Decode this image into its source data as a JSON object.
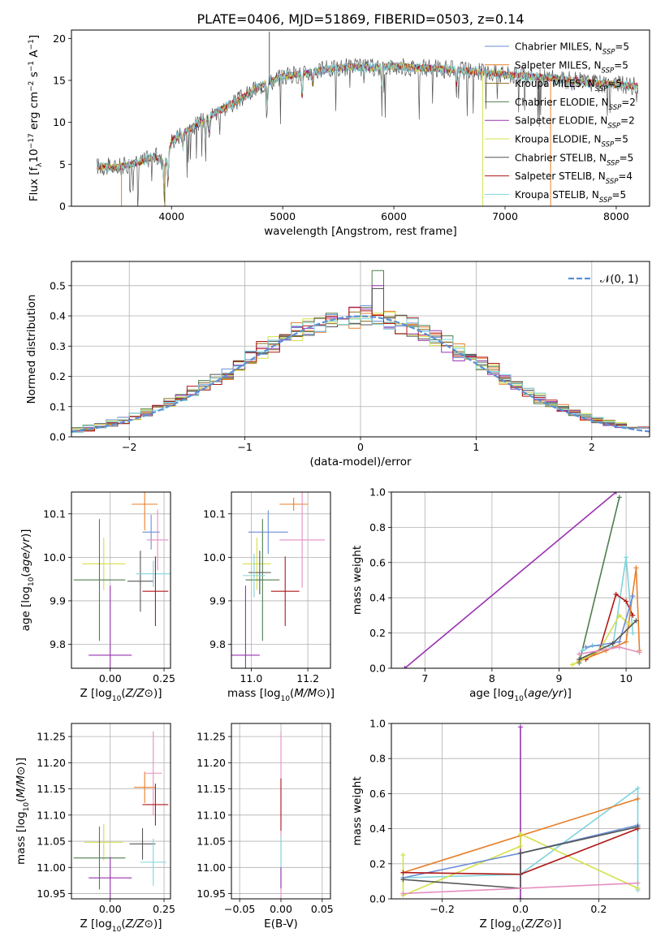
{
  "figure": {
    "title": "PLATE=0406, MJD=51869, FIBERID=0503, z=0.14"
  },
  "colors": {
    "Chabrier MILES": "#6a8fd6",
    "Salpeter MILES": "#e87f2a",
    "Kroupa MILES": "#8a6d1f",
    "Chabrier ELODIE": "#4f7d4f",
    "Salpeter ELODIE": "#9932b0",
    "Kroupa ELODIE": "#d4e04a",
    "Chabrier STELIB": "#555555",
    "Salpeter STELIB": "#b01818",
    "Kroupa STELIB": "#7fd4dc",
    "pink": "#e58fc0",
    "gauss": "#5b8fd6"
  },
  "chart_data": [
    {
      "id": "spectrum",
      "type": "line",
      "xlabel": "wavelength [Angstrom, rest frame]",
      "ylabel": "Flux [f_λ 10^-17 erg cm^-2 s^-1 A^-1]",
      "xlim": [
        3100,
        8300
      ],
      "ylim": [
        0,
        21
      ],
      "xticks": [
        4000,
        5000,
        6000,
        7000,
        8000
      ],
      "yticks": [
        0,
        5,
        10,
        15,
        20
      ],
      "legend_position": "top-right",
      "legend": [
        {
          "label": "Chabrier MILES, N_SSP=5",
          "base": "Chabrier MILES, N",
          "sub": "SSP",
          "suffix": "=5"
        },
        {
          "label": "Salpeter MILES, N_SSP=5",
          "base": "Salpeter MILES, N",
          "sub": "SSP",
          "suffix": "=5"
        },
        {
          "label": "Kroupa MILES, N_SSP=5",
          "base": "Kroupa MILES, N",
          "sub": "SSP",
          "suffix": "=5"
        },
        {
          "label": "Chabrier ELODIE, N_SSP=2",
          "base": "Chabrier ELODIE, N",
          "sub": "SSP",
          "suffix": "=2"
        },
        {
          "label": "Salpeter ELODIE, N_SSP=2",
          "base": "Salpeter ELODIE, N",
          "sub": "SSP",
          "suffix": "=2"
        },
        {
          "label": "Kroupa ELODIE, N_SSP=5",
          "base": "Kroupa ELODIE, N",
          "sub": "SSP",
          "suffix": "=5"
        },
        {
          "label": "Chabrier STELIB, N_SSP=5",
          "base": "Chabrier STELIB, N",
          "sub": "SSP",
          "suffix": "=5"
        },
        {
          "label": "Salpeter STELIB, N_SSP=4",
          "base": "Salpeter STELIB, N",
          "sub": "SSP",
          "suffix": "=4"
        },
        {
          "label": "Kroupa STELIB, N_SSP=5",
          "base": "Kroupa STELIB, N",
          "sub": "SSP",
          "suffix": "=5"
        }
      ],
      "continuum": [
        [
          3330,
          4.8
        ],
        [
          3500,
          4.6
        ],
        [
          3700,
          5.2
        ],
        [
          3850,
          6.0
        ],
        [
          3950,
          5.0
        ],
        [
          4000,
          7.8
        ],
        [
          4200,
          9.5
        ],
        [
          4400,
          11.2
        ],
        [
          4600,
          12.6
        ],
        [
          4800,
          14.3
        ],
        [
          5000,
          15.5
        ],
        [
          5200,
          15.8
        ],
        [
          5400,
          16.3
        ],
        [
          5600,
          16.6
        ],
        [
          5800,
          16.5
        ],
        [
          6000,
          16.7
        ],
        [
          6200,
          16.5
        ],
        [
          6400,
          16.4
        ],
        [
          6600,
          16.2
        ],
        [
          6800,
          16.0
        ],
        [
          7000,
          15.7
        ],
        [
          7200,
          15.5
        ],
        [
          7400,
          15.3
        ],
        [
          7600,
          15.0
        ],
        [
          7800,
          14.7
        ],
        [
          8000,
          14.5
        ],
        [
          8200,
          14.3
        ]
      ],
      "absorption_lines": [
        [
          3934,
          4.5
        ],
        [
          3969,
          3.8
        ],
        [
          4102,
          2.0
        ],
        [
          4305,
          2.5
        ],
        [
          4340,
          2.0
        ],
        [
          4861,
          2.8
        ],
        [
          5175,
          3.5
        ],
        [
          5270,
          1.5
        ],
        [
          5890,
          2.5
        ],
        [
          6563,
          1.8
        ],
        [
          7600,
          1.0
        ]
      ],
      "spikes": [
        {
          "x": 3550,
          "y0": 0,
          "y1": 4.5,
          "series": "Salpeter MILES"
        },
        {
          "x": 3940,
          "y0": 0,
          "y1": 5.0,
          "series": "Kroupa MILES"
        },
        {
          "x": 6800,
          "y0": 0,
          "y1": 16.0,
          "series": "Kroupa ELODIE"
        },
        {
          "x": 7410,
          "y0": 0,
          "y1": 15.3,
          "series": "Salpeter MILES"
        },
        {
          "x": 4880,
          "y0": 14.5,
          "y1": 20.8,
          "series": "Chabrier STELIB"
        }
      ]
    },
    {
      "id": "residuals",
      "type": "line",
      "xlabel": "(data-model)/error",
      "ylabel": "Normed distribution",
      "xlim": [
        -2.5,
        2.5
      ],
      "ylim": [
        0,
        0.58
      ],
      "xticks": [
        -2,
        -1,
        0,
        1,
        2
      ],
      "yticks": [
        0.0,
        0.1,
        0.2,
        0.3,
        0.4,
        0.5
      ],
      "legend_position": "top-right",
      "legend": [
        {
          "label": "𝒩(0, 1)",
          "style": "dashed"
        }
      ],
      "bin_width": 0.1,
      "peak_values": {
        "Chabrier ELODIE": 0.55,
        "Salpeter ELODIE": 0.5,
        "Chabrier STELIB": 0.49
      },
      "gaussian": {
        "mean": 0,
        "sigma": 1
      }
    },
    {
      "id": "age-vs-Z",
      "type": "scatter",
      "xlabel": "Z [log10(Z/Z⊙)]",
      "ylabel": "age [log10(age/yr)]",
      "xlim": [
        -0.18,
        0.28
      ],
      "ylim": [
        9.745,
        10.15
      ],
      "xticks": [
        0.0,
        0.25
      ],
      "yticks": [
        9.8,
        9.9,
        10.0,
        10.1
      ],
      "points": [
        {
          "series": "Kroupa ELODIE",
          "x": -0.03,
          "xerr": 0.1,
          "y": 9.985,
          "yerr": 0.06
        },
        {
          "series": "Chabrier ELODIE",
          "x": -0.05,
          "xerr": 0.12,
          "y": 9.948,
          "yerr": 0.14
        },
        {
          "series": "Salpeter ELODIE",
          "x": 0.0,
          "xerr": 0.1,
          "y": 9.775,
          "yerr": 0.16
        },
        {
          "series": "Salpeter MILES",
          "x": 0.16,
          "xerr": 0.06,
          "y": 10.122,
          "yerr": 0.06
        },
        {
          "series": "Chabrier STELIB",
          "x": 0.14,
          "xerr": 0.06,
          "y": 9.945,
          "yerr": 0.07
        },
        {
          "series": "Kroupa STELIB",
          "x": 0.2,
          "xerr": 0.08,
          "y": 9.962,
          "yerr": 0.03
        },
        {
          "series": "Chabrier MILES",
          "x": 0.19,
          "xerr": 0.04,
          "y": 10.058,
          "yerr": 0.04
        },
        {
          "series": "pink",
          "x": 0.22,
          "xerr": 0.05,
          "y": 10.04,
          "yerr": 0.07
        },
        {
          "series": "Salpeter STELIB",
          "x": 0.21,
          "xerr": 0.06,
          "y": 9.922,
          "yerr": 0.08
        }
      ]
    },
    {
      "id": "age-vs-mass",
      "type": "scatter",
      "xlabel": "mass [log10(M/M⊙)]",
      "ylabel": "",
      "xlim": [
        10.93,
        11.28
      ],
      "ylim": [
        9.745,
        10.15
      ],
      "xticks": [
        11.0,
        11.2
      ],
      "yticks": [
        9.8,
        9.9,
        10.0,
        10.1
      ],
      "points": [
        {
          "series": "Kroupa ELODIE",
          "x": 11.02,
          "xerr": 0.05,
          "y": 9.985,
          "yerr": 0.06
        },
        {
          "series": "Chabrier ELODIE",
          "x": 11.04,
          "xerr": 0.06,
          "y": 9.948,
          "yerr": 0.14
        },
        {
          "series": "Salpeter ELODIE",
          "x": 10.98,
          "xerr": 0.05,
          "y": 9.775,
          "yerr": 0.16
        },
        {
          "series": "Salpeter MILES",
          "x": 11.15,
          "xerr": 0.05,
          "y": 10.122,
          "yerr": 0.015
        },
        {
          "series": "Chabrier STELIB",
          "x": 11.03,
          "xerr": 0.04,
          "y": 9.965,
          "yerr": 0.05
        },
        {
          "series": "Kroupa STELIB",
          "x": 11.01,
          "xerr": 0.04,
          "y": 9.958,
          "yerr": 0.05
        },
        {
          "series": "Chabrier MILES",
          "x": 11.06,
          "xerr": 0.07,
          "y": 10.058,
          "yerr": 0.05
        },
        {
          "series": "pink",
          "x": 11.18,
          "xerr": 0.08,
          "y": 10.04,
          "yerr": 0.11
        },
        {
          "series": "Salpeter STELIB",
          "x": 11.12,
          "xerr": 0.05,
          "y": 9.922,
          "yerr": 0.08
        }
      ]
    },
    {
      "id": "massweight-vs-age",
      "type": "line",
      "xlabel": "age [log10(age/yr)]",
      "ylabel": "mass weight",
      "xlim": [
        6.5,
        10.35
      ],
      "ylim": [
        0,
        1.0
      ],
      "xticks": [
        7,
        8,
        9,
        10
      ],
      "yticks": [
        0.0,
        0.2,
        0.4,
        0.6,
        0.8,
        1.0
      ],
      "series": [
        {
          "name": "Salpeter ELODIE",
          "points": [
            [
              6.7,
              0.0
            ],
            [
              9.85,
              1.0
            ]
          ]
        },
        {
          "name": "Chabrier ELODIE",
          "points": [
            [
              9.3,
              0.03
            ],
            [
              9.9,
              0.97
            ]
          ]
        },
        {
          "name": "Kroupa STELIB",
          "points": [
            [
              9.35,
              0.1
            ],
            [
              9.5,
              0.13
            ],
            [
              9.8,
              0.12
            ],
            [
              10.0,
              0.63
            ],
            [
              10.1,
              0.2
            ]
          ]
        },
        {
          "name": "Salpeter STELIB",
          "points": [
            [
              9.4,
              0.05
            ],
            [
              9.6,
              0.1
            ],
            [
              9.85,
              0.42
            ],
            [
              10.0,
              0.38
            ],
            [
              10.1,
              0.3
            ]
          ]
        },
        {
          "name": "Salpeter MILES",
          "points": [
            [
              9.3,
              0.04
            ],
            [
              9.7,
              0.1
            ],
            [
              10.0,
              0.15
            ],
            [
              10.15,
              0.57
            ],
            [
              10.2,
              0.1
            ]
          ]
        },
        {
          "name": "Kroupa ELODIE",
          "points": [
            [
              9.2,
              0.02
            ],
            [
              9.6,
              0.1
            ],
            [
              9.9,
              0.3
            ],
            [
              10.05,
              0.25
            ]
          ]
        },
        {
          "name": "Chabrier MILES",
          "points": [
            [
              9.4,
              0.12
            ],
            [
              9.9,
              0.15
            ],
            [
              10.1,
              0.41
            ]
          ]
        },
        {
          "name": "Chabrier STELIB",
          "points": [
            [
              9.3,
              0.05
            ],
            [
              9.8,
              0.14
            ],
            [
              10.15,
              0.27
            ]
          ]
        },
        {
          "name": "pink",
          "points": [
            [
              9.3,
              0.08
            ],
            [
              9.9,
              0.12
            ],
            [
              10.2,
              0.09
            ]
          ]
        }
      ]
    },
    {
      "id": "mass-vs-Z",
      "type": "scatter",
      "xlabel": "Z [log10(Z/Z⊙)]",
      "ylabel": "mass [log10(M/M⊙)]",
      "xlim": [
        -0.18,
        0.28
      ],
      "ylim": [
        10.94,
        11.275
      ],
      "xticks": [
        0.0,
        0.25
      ],
      "yticks": [
        10.95,
        11.0,
        11.05,
        11.1,
        11.15,
        11.2,
        11.25
      ],
      "points": [
        {
          "series": "Kroupa ELODIE",
          "x": -0.03,
          "xerr": 0.09,
          "y": 11.048,
          "yerr": 0.035
        },
        {
          "series": "Chabrier ELODIE",
          "x": -0.05,
          "xerr": 0.12,
          "y": 11.018,
          "yerr": 0.06
        },
        {
          "series": "Salpeter ELODIE",
          "x": 0.0,
          "xerr": 0.1,
          "y": 10.98,
          "yerr": 0.04
        },
        {
          "series": "Salpeter MILES",
          "x": 0.16,
          "xerr": 0.05,
          "y": 11.153,
          "yerr": 0.03
        },
        {
          "series": "Chabrier STELIB",
          "x": 0.15,
          "xerr": 0.06,
          "y": 11.045,
          "yerr": 0.03
        },
        {
          "series": "Kroupa STELIB",
          "x": 0.2,
          "xerr": 0.06,
          "y": 11.01,
          "yerr": 0.045
        },
        {
          "series": "pink",
          "x": 0.2,
          "xerr": 0.04,
          "y": 11.18,
          "yerr": 0.08
        },
        {
          "series": "Salpeter STELIB",
          "x": 0.21,
          "xerr": 0.06,
          "y": 11.12,
          "yerr": 0.04
        }
      ]
    },
    {
      "id": "mass-vs-EBV",
      "type": "scatter",
      "xlabel": "E(B-V)",
      "ylabel": "",
      "xlim": [
        -0.06,
        0.06
      ],
      "ylim": [
        10.94,
        11.275
      ],
      "xticks": [
        -0.05,
        0.0,
        0.05
      ],
      "yticks": [
        10.95,
        11.0,
        11.05,
        11.1,
        11.15,
        11.2,
        11.25
      ],
      "points": [
        {
          "series": "pink",
          "x": 0.0,
          "xerr": 0,
          "y": 11.1,
          "yerr": 0.16
        },
        {
          "series": "Salpeter STELIB",
          "x": 0.0,
          "xerr": 0,
          "y": 11.12,
          "yerr": 0.05
        },
        {
          "series": "Kroupa STELIB",
          "x": 0.0,
          "xerr": 0,
          "y": 11.01,
          "yerr": 0.05
        },
        {
          "series": "Salpeter ELODIE",
          "x": 0.0,
          "xerr": 0,
          "y": 10.98,
          "yerr": 0.02
        }
      ]
    },
    {
      "id": "massweight-vs-Z",
      "type": "line",
      "xlabel": "Z [log10(Z/Z⊙)]",
      "ylabel": "mass weight",
      "xlim": [
        -0.33,
        0.33
      ],
      "ylim": [
        0,
        1.0
      ],
      "xticks": [
        -0.2,
        0.0,
        0.2
      ],
      "yticks": [
        0.0,
        0.2,
        0.4,
        0.6,
        0.8,
        1.0
      ],
      "series": [
        {
          "name": "Salpeter ELODIE",
          "points": [
            [
              0.0,
              0.0
            ],
            [
              0.0,
              0.98
            ]
          ]
        },
        {
          "name": "Kroupa STELIB",
          "points": [
            [
              -0.3,
              0.12
            ],
            [
              0.0,
              0.14
            ],
            [
              0.3,
              0.63
            ],
            [
              0.3,
              0.05
            ]
          ]
        },
        {
          "name": "Salpeter MILES",
          "points": [
            [
              -0.3,
              0.15
            ],
            [
              0.0,
              0.36
            ],
            [
              0.3,
              0.57
            ]
          ]
        },
        {
          "name": "Kroupa ELODIE",
          "points": [
            [
              -0.3,
              0.25
            ],
            [
              -0.3,
              0.02
            ],
            [
              0.0,
              0.3
            ],
            [
              0.0,
              0.37
            ],
            [
              0.3,
              0.06
            ]
          ]
        },
        {
          "name": "Chabrier MILES",
          "points": [
            [
              -0.3,
              0.12
            ],
            [
              0.0,
              0.26
            ],
            [
              0.3,
              0.42
            ]
          ]
        },
        {
          "name": "Salpeter STELIB",
          "points": [
            [
              -0.3,
              0.15
            ],
            [
              0.0,
              0.14
            ],
            [
              0.3,
              0.4
            ]
          ]
        },
        {
          "name": "Chabrier STELIB",
          "points": [
            [
              -0.3,
              0.11
            ],
            [
              0.0,
              0.06
            ],
            [
              0.0,
              0.26
            ],
            [
              0.3,
              0.41
            ]
          ]
        },
        {
          "name": "pink",
          "points": [
            [
              -0.3,
              0.03
            ],
            [
              0.3,
              0.09
            ]
          ]
        }
      ]
    }
  ]
}
